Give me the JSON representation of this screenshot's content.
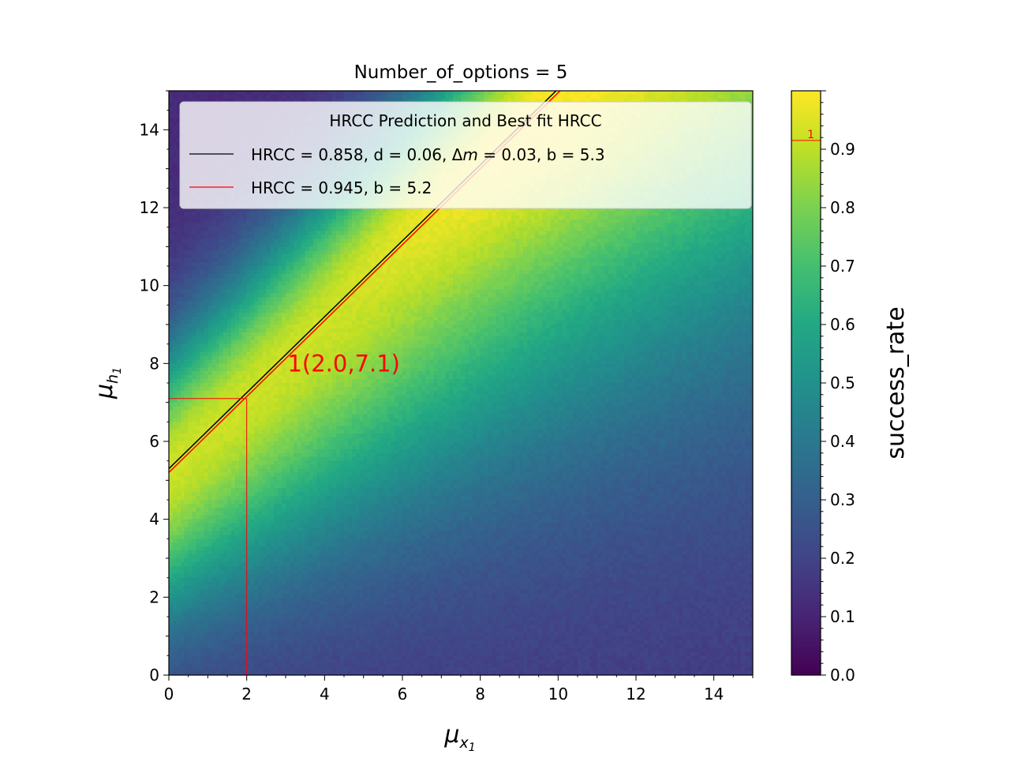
{
  "chart_data": {
    "type": "heatmap",
    "title": "Number_of_options = 5",
    "xlabel": {
      "base": "μ",
      "sub": "x",
      "subsub": "1"
    },
    "ylabel": {
      "base": "μ",
      "sub": "h",
      "subsub": "1"
    },
    "xlim": [
      0,
      15
    ],
    "ylim": [
      0,
      15
    ],
    "x_ticks": [
      0,
      2,
      4,
      6,
      8,
      10,
      12,
      14
    ],
    "y_ticks": [
      0,
      2,
      4,
      6,
      8,
      10,
      12,
      14
    ],
    "x_tick_labels": [
      "0",
      "2",
      "4",
      "6",
      "8",
      "10",
      "12",
      "14"
    ],
    "y_tick_labels": [
      "0",
      "2",
      "4",
      "6",
      "8",
      "10",
      "12",
      "14"
    ],
    "grid_resolution": 150,
    "colormap": "viridis",
    "colorbar": {
      "label": "success_rate",
      "range": [
        0,
        1.0
      ],
      "ticks": [
        0.0,
        0.1,
        0.2,
        0.3,
        0.4,
        0.5,
        0.6,
        0.7,
        0.8,
        0.9
      ],
      "tick_labels": [
        "0.0",
        "0.1",
        "0.2",
        "0.3",
        "0.4",
        "0.5",
        "0.6",
        "0.7",
        "0.8",
        "0.9"
      ],
      "marker": {
        "value": 0.915,
        "label": "1",
        "color": "#ff0000"
      }
    },
    "legend": {
      "title": "HRCC Prediction and Best fit HRCC",
      "placement": "upper",
      "entries": [
        {
          "label_pre": "HRCC = 0.858, d = 0.06, Δ",
          "label_m": "m",
          "label_post": " = 0.03, b = 5.3",
          "color": "#000000"
        },
        {
          "label_pre": "HRCC = 0.945, b = 5.2",
          "label_m": "",
          "label_post": "",
          "color": "#ff0000"
        }
      ]
    },
    "lines": [
      {
        "name": "HRCC Prediction",
        "color": "#000000",
        "slope": 0.975,
        "intercept": 5.3
      },
      {
        "name": "Best fit HRCC",
        "color": "#ff0000",
        "slope": 0.975,
        "intercept": 5.2
      }
    ],
    "annotation": {
      "text": "1(2.0,7.1)",
      "x": 2.0,
      "y": 7.1,
      "text_at": [
        3.05,
        8.0
      ],
      "color": "#ff0000"
    }
  }
}
